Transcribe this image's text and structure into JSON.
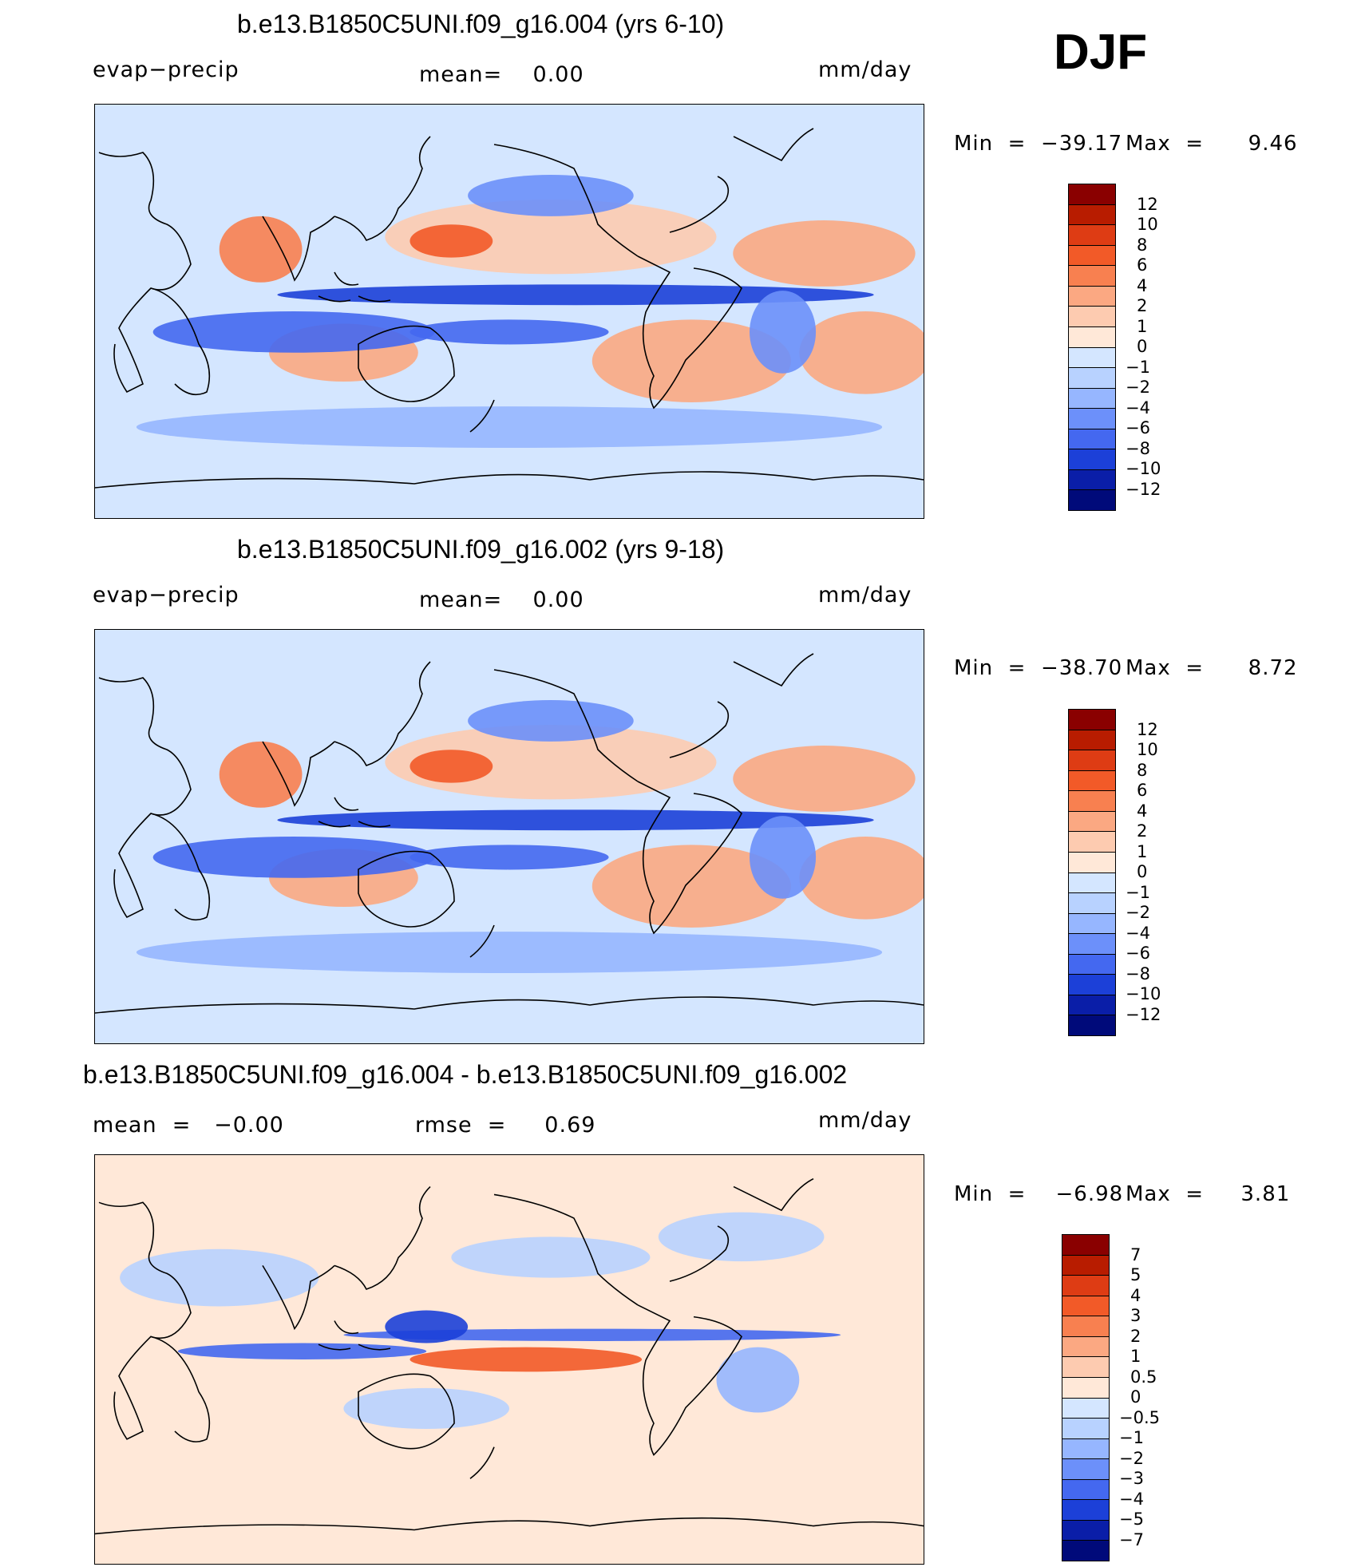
{
  "season": "DJF",
  "chart_data": [
    {
      "type": "heatmap",
      "title": "b.e13.B1850C5UNI.f09_g16.004 (yrs 6-10)",
      "left_label": "evap−precip",
      "center_label": "mean=    0.00",
      "units": "mm/day",
      "min_text": "Min  =  −39.17",
      "max_text": "Max  =      9.46",
      "colorbar": {
        "levels": [
          "12",
          "10",
          "8",
          "6",
          "4",
          "2",
          "1",
          "0",
          "−1",
          "−2",
          "−4",
          "−6",
          "−8",
          "−10",
          "−12"
        ],
        "colors": [
          "#8a0000",
          "#b81c00",
          "#de3c14",
          "#f25a28",
          "#f88050",
          "#fba882",
          "#fdcbb0",
          "#ffe8d8",
          "#d4e6ff",
          "#b8d2ff",
          "#96b6ff",
          "#6c90fa",
          "#4468f0",
          "#1c40d8",
          "#0a1ea8",
          "#000a7a"
        ]
      }
    },
    {
      "type": "heatmap",
      "title": "b.e13.B1850C5UNI.f09_g16.002 (yrs 9-18)",
      "left_label": "evap−precip",
      "center_label": "mean=    0.00",
      "units": "mm/day",
      "min_text": "Min  =  −38.70",
      "max_text": "Max  =      8.72",
      "colorbar": {
        "levels": [
          "12",
          "10",
          "8",
          "6",
          "4",
          "2",
          "1",
          "0",
          "−1",
          "−2",
          "−4",
          "−6",
          "−8",
          "−10",
          "−12"
        ],
        "colors": [
          "#8a0000",
          "#b81c00",
          "#de3c14",
          "#f25a28",
          "#f88050",
          "#fba882",
          "#fdcbb0",
          "#ffe8d8",
          "#d4e6ff",
          "#b8d2ff",
          "#96b6ff",
          "#6c90fa",
          "#4468f0",
          "#1c40d8",
          "#0a1ea8",
          "#000a7a"
        ]
      }
    },
    {
      "type": "heatmap",
      "title": "b.e13.B1850C5UNI.f09_g16.004 - b.e13.B1850C5UNI.f09_g16.002",
      "left_label": "mean  =   −0.00",
      "center_label": "rmse  =     0.69",
      "units": "mm/day",
      "min_text": "Min  =    −6.98",
      "max_text": "Max  =     3.81",
      "colorbar": {
        "levels": [
          "7",
          "5",
          "4",
          "3",
          "2",
          "1",
          "0.5",
          "0",
          "−0.5",
          "−1",
          "−2",
          "−3",
          "−4",
          "−5",
          "−7"
        ],
        "colors": [
          "#8a0000",
          "#b81c00",
          "#de3c14",
          "#f25a28",
          "#f88050",
          "#fba882",
          "#fdcbb0",
          "#ffe8d8",
          "#d4e6ff",
          "#b8d2ff",
          "#96b6ff",
          "#6c90fa",
          "#4468f0",
          "#1c40d8",
          "#0a1ea8",
          "#000a7a"
        ]
      }
    }
  ]
}
